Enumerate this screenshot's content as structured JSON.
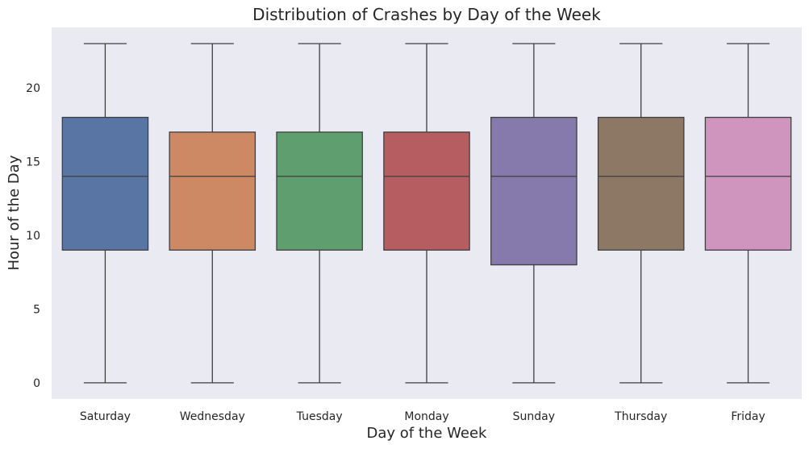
{
  "chart_data": {
    "type": "box",
    "title": "Distribution of Crashes by Day of the Week",
    "xlabel": "Day of the Week",
    "ylabel": "Hour of the Day",
    "ylim": [
      -1.1,
      24.1
    ],
    "yticks": [
      0,
      5,
      10,
      15,
      20
    ],
    "grid": false,
    "categories": [
      "Saturday",
      "Wednesday",
      "Tuesday",
      "Monday",
      "Sunday",
      "Thursday",
      "Friday"
    ],
    "boxes": [
      {
        "category": "Saturday",
        "min": 0,
        "q1": 9,
        "median": 14,
        "q3": 18,
        "max": 23,
        "color": "#5875A4"
      },
      {
        "category": "Wednesday",
        "min": 0,
        "q1": 9,
        "median": 14,
        "q3": 17,
        "max": 23,
        "color": "#CC8963"
      },
      {
        "category": "Tuesday",
        "min": 0,
        "q1": 9,
        "median": 14,
        "q3": 17,
        "max": 23,
        "color": "#5F9E6E"
      },
      {
        "category": "Monday",
        "min": 0,
        "q1": 9,
        "median": 14,
        "q3": 17,
        "max": 23,
        "color": "#B55D60"
      },
      {
        "category": "Sunday",
        "min": 0,
        "q1": 8,
        "median": 14,
        "q3": 18,
        "max": 23,
        "color": "#857AAB"
      },
      {
        "category": "Thursday",
        "min": 0,
        "q1": 9,
        "median": 14,
        "q3": 18,
        "max": 23,
        "color": "#8D7866"
      },
      {
        "category": "Friday",
        "min": 0,
        "q1": 9,
        "median": 14,
        "q3": 18,
        "max": 23,
        "color": "#D095BF"
      }
    ],
    "colors": {
      "plot_background": "#EAEAF2",
      "line": "#3F3F3F"
    }
  }
}
